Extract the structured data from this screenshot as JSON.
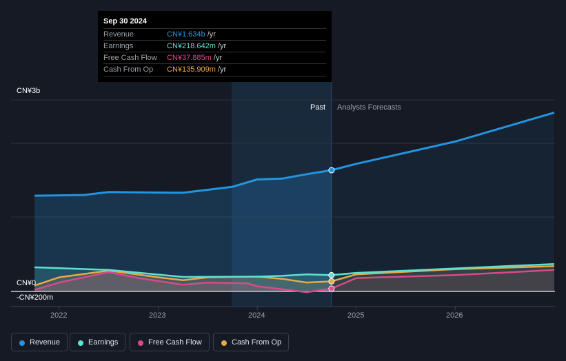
{
  "chart_data": {
    "type": "line",
    "y_unit": "CN¥ billions",
    "ylim": [
      -0.2,
      3
    ],
    "y_tick_labels": [
      "CN¥3b",
      "CN¥0",
      "-CN¥200m"
    ],
    "x_tick_labels": [
      "2022",
      "2023",
      "2024",
      "2025",
      "2026"
    ],
    "divider_labels": {
      "past": "Past",
      "forecast": "Analysts Forecasts"
    },
    "past_end": 2024.75,
    "series": [
      {
        "name": "Revenue",
        "color": "#2394df",
        "points": [
          [
            2021.75,
            1.29
          ],
          [
            2022.25,
            1.3
          ],
          [
            2022.5,
            1.34
          ],
          [
            2023.25,
            1.33
          ],
          [
            2023.5,
            1.37
          ],
          [
            2023.75,
            1.41
          ],
          [
            2024.0,
            1.51
          ],
          [
            2024.25,
            1.52
          ],
          [
            2024.5,
            1.58
          ],
          [
            2024.75,
            1.634
          ],
          [
            2025.0,
            1.72
          ],
          [
            2026.0,
            2.02
          ],
          [
            2027.0,
            2.41
          ]
        ]
      },
      {
        "name": "Earnings",
        "color": "#5fe0d0",
        "points": [
          [
            2021.75,
            0.325
          ],
          [
            2022.5,
            0.29
          ],
          [
            2023.25,
            0.195
          ],
          [
            2024.0,
            0.2
          ],
          [
            2024.25,
            0.21
          ],
          [
            2024.5,
            0.23
          ],
          [
            2024.75,
            0.219
          ],
          [
            2025.0,
            0.25
          ],
          [
            2026.0,
            0.31
          ],
          [
            2027.0,
            0.37
          ]
        ]
      },
      {
        "name": "Free Cash Flow",
        "color": "#d9498c",
        "points": [
          [
            2021.75,
            0.02
          ],
          [
            2022.0,
            0.12
          ],
          [
            2022.5,
            0.26
          ],
          [
            2022.8,
            0.18
          ],
          [
            2023.25,
            0.09
          ],
          [
            2023.5,
            0.12
          ],
          [
            2023.9,
            0.11
          ],
          [
            2024.0,
            0.07
          ],
          [
            2024.5,
            -0.01
          ],
          [
            2024.75,
            0.038
          ],
          [
            2025.0,
            0.18
          ],
          [
            2026.0,
            0.22
          ],
          [
            2027.0,
            0.29
          ]
        ]
      },
      {
        "name": "Cash From Op",
        "color": "#e8a94a",
        "points": [
          [
            2021.75,
            0.08
          ],
          [
            2022.0,
            0.19
          ],
          [
            2022.5,
            0.28
          ],
          [
            2023.0,
            0.19
          ],
          [
            2023.25,
            0.15
          ],
          [
            2023.5,
            0.19
          ],
          [
            2024.0,
            0.2
          ],
          [
            2024.25,
            0.17
          ],
          [
            2024.5,
            0.12
          ],
          [
            2024.75,
            0.136
          ],
          [
            2025.0,
            0.23
          ],
          [
            2026.0,
            0.3
          ],
          [
            2027.0,
            0.34
          ]
        ]
      }
    ]
  },
  "tooltip": {
    "date": "Sep 30 2024",
    "unit": "/yr",
    "rows": [
      {
        "label": "Revenue",
        "value": "CN¥1.634b",
        "color": "#2394df"
      },
      {
        "label": "Earnings",
        "value": "CN¥218.642m",
        "color": "#5fe0d0"
      },
      {
        "label": "Free Cash Flow",
        "value": "CN¥37.885m",
        "color": "#d9498c"
      },
      {
        "label": "Cash From Op",
        "value": "CN¥135.909m",
        "color": "#e8a94a"
      }
    ]
  },
  "legend": [
    "Revenue",
    "Earnings",
    "Free Cash Flow",
    "Cash From Op"
  ]
}
